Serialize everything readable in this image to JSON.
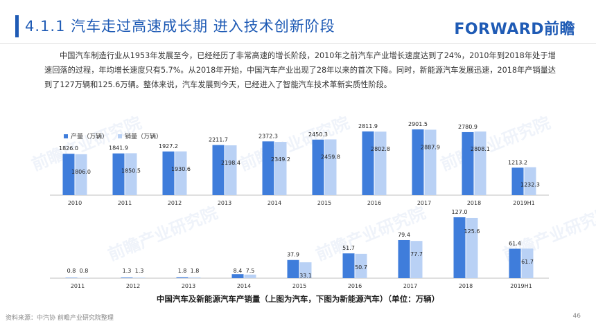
{
  "header": {
    "title": "4.1.1  汽车走过高速成长期  进入技术创新阶段",
    "logo": "FORWARD前瞻"
  },
  "intro": "中国汽车制造行业从1953年发展至今，已经经历了非常高速的增长阶段，2010年之前汽车产业增长速度达到了24%，2010年到2018年处于增速回落的过程，年均增长速度只有5.7%。从2018年开始，中国汽车产业出现了28年以来的首次下降。同时，新能源汽车发展迅速，2018年产销量达到了127万辆和125.6万辆。整体来说，汽车发展到今天，已经进入了智能汽车技术革新实质性阶段。",
  "watermark": "前瞻产业研究院",
  "colors": {
    "production": "#3f7ddb",
    "sales": "#b9d1f5",
    "accent": "#1f5bb5"
  },
  "chart_data": [
    {
      "type": "bar",
      "categories": [
        "2010",
        "2011",
        "2012",
        "2013",
        "2014",
        "2015",
        "2016",
        "2017",
        "2018",
        "2019H1"
      ],
      "series": [
        {
          "name": "产量（万辆）",
          "values": [
            1826.0,
            1841.9,
            1927.2,
            2211.7,
            2372.3,
            2450.3,
            2811.9,
            2901.5,
            2780.9,
            1213.2
          ]
        },
        {
          "name": "销量（万辆）",
          "values": [
            1806.0,
            1850.5,
            1930.6,
            2198.4,
            2349.2,
            2459.8,
            2802.8,
            2887.9,
            2808.1,
            1232.3
          ]
        }
      ],
      "value_labels": {
        "production": [
          "1826.0",
          "1841.9",
          "1927.2",
          "2211.7",
          "2372.3",
          "2450.3",
          "2811.9",
          "2901.5",
          "2780.9",
          "1213.2"
        ],
        "sales": [
          "1806.0",
          "1850.5",
          "1930.6",
          "2198.4",
          "2349.2",
          "2459.8",
          "2802.8",
          "2887.9",
          "2808.1",
          "1232.3"
        ]
      },
      "legend": "top-left",
      "grid": false
    },
    {
      "type": "bar",
      "categories": [
        "2011",
        "2012",
        "2013",
        "2014",
        "2015",
        "2016",
        "2017",
        "2018",
        "2019H1"
      ],
      "series": [
        {
          "values": [
            0.8,
            1.3,
            1.8,
            8.4,
            37.9,
            51.7,
            79.4,
            127.0,
            61.4
          ]
        },
        {
          "values": [
            0.8,
            1.3,
            1.8,
            7.5,
            33.1,
            50.7,
            77.7,
            125.6,
            61.7
          ]
        }
      ],
      "value_labels": {
        "production": [
          "0.8",
          "1.3",
          "1.8",
          "8.4",
          "37.9",
          "51.7",
          "79.4",
          "127.0",
          "61.4"
        ],
        "sales": [
          "0.8",
          "1.3",
          "1.8",
          "7.5",
          "33.1",
          "50.7",
          "77.7",
          "125.6",
          "61.7"
        ]
      },
      "grid": false
    }
  ],
  "caption": "中国汽车及新能源汽车产销量（上图为汽车，下图为新能源汽车）（单位：万辆）",
  "footer": {
    "source": "资料来源：中汽协 前瞻产业研究院整理",
    "page": "46"
  }
}
